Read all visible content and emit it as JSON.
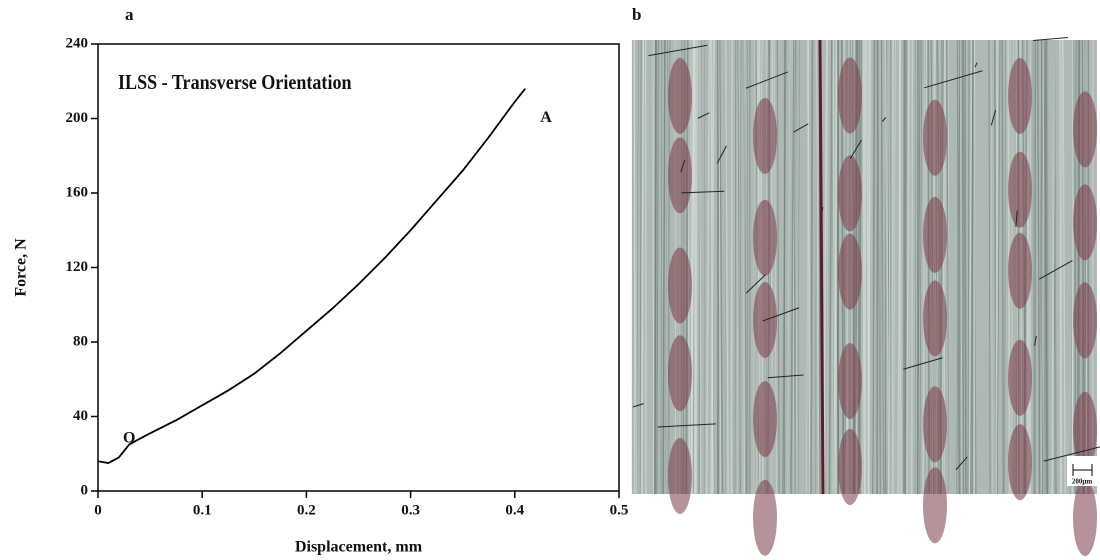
{
  "chart_data": {
    "type": "line",
    "panel_label": "a",
    "title": "ILSS - Transverse Orientation",
    "x_label": "Displacement, mm",
    "y_label": "Force, N",
    "x": [
      0,
      0.01,
      0.02,
      0.03,
      0.04,
      0.05,
      0.075,
      0.1,
      0.125,
      0.15,
      0.175,
      0.2,
      0.225,
      0.25,
      0.275,
      0.3,
      0.325,
      0.35,
      0.375,
      0.4,
      0.41
    ],
    "values": [
      16,
      15,
      18,
      25,
      28,
      31,
      38,
      46,
      54,
      63,
      74,
      86,
      98,
      111,
      125,
      140,
      156,
      172,
      190,
      209,
      216
    ],
    "color": "#000000",
    "xlim": [
      0,
      0.5
    ],
    "xticks": [
      0,
      0.1,
      0.2,
      0.3,
      0.4,
      0.5
    ],
    "ylim": [
      0,
      240
    ],
    "yticks": [
      0,
      40,
      80,
      120,
      160,
      200,
      240
    ],
    "annotations": [
      {
        "text": "O",
        "x": 0.03,
        "y": 28
      },
      {
        "text": "A",
        "x": 0.43,
        "y": 200
      }
    ]
  },
  "micrograph": {
    "panel_label": "b",
    "scale_bar_label": "200µm"
  }
}
